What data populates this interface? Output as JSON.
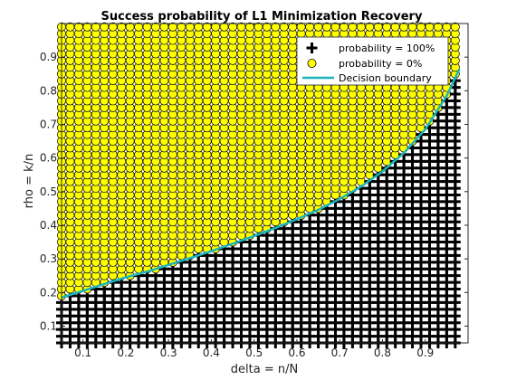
{
  "chart_data": {
    "type": "scatter",
    "title": "Success probability of L1 Minimization Recovery",
    "xlabel": "delta = n/N",
    "ylabel": "rho = k/n",
    "xlim": [
      0.05,
      1.0
    ],
    "ylim": [
      0.05,
      1.0
    ],
    "xticks": [
      "0.1",
      "0.2",
      "0.3",
      "0.4",
      "0.5",
      "0.6",
      "0.7",
      "0.8",
      "0.9"
    ],
    "yticks": [
      "0.1",
      "0.2",
      "0.3",
      "0.4",
      "0.5",
      "0.6",
      "0.7",
      "0.8",
      "0.9"
    ],
    "grid": false,
    "legend_position": "top-right",
    "grid_points": {
      "delta_start": 0.05,
      "delta_end": 0.98,
      "delta_step": 0.02,
      "rho_start": 0.05,
      "rho_end": 0.99,
      "rho_step": 0.02
    },
    "series": [
      {
        "name": "probability = 100%",
        "marker": "plus",
        "color": "#000000",
        "rule": "rho below boundary"
      },
      {
        "name": "probability = 0%",
        "marker": "circle",
        "color": "#FFFF00",
        "edge": "#000000",
        "rule": "rho above boundary"
      },
      {
        "name": "Decision boundary",
        "type": "line",
        "color": "#1CB4BC",
        "x": [
          0.05,
          0.1,
          0.15,
          0.2,
          0.25,
          0.3,
          0.35,
          0.4,
          0.45,
          0.5,
          0.55,
          0.6,
          0.65,
          0.7,
          0.75,
          0.8,
          0.85,
          0.9,
          0.95,
          0.98
        ],
        "y": [
          0.185,
          0.205,
          0.225,
          0.245,
          0.262,
          0.282,
          0.302,
          0.323,
          0.345,
          0.368,
          0.392,
          0.418,
          0.446,
          0.478,
          0.515,
          0.56,
          0.615,
          0.685,
          0.785,
          0.865
        ]
      }
    ]
  }
}
